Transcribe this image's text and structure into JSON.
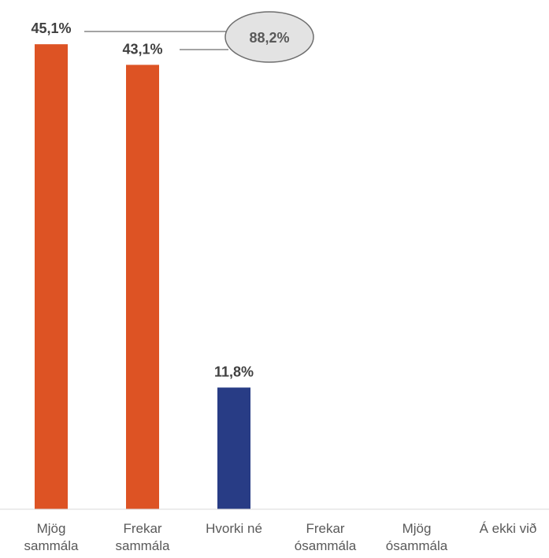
{
  "chart_data": {
    "type": "bar",
    "categories": [
      [
        "Mjög",
        "sammála"
      ],
      [
        "Frekar",
        "sammála"
      ],
      [
        "Hvorki né"
      ],
      [
        "Frekar",
        "ósammála"
      ],
      [
        "Mjög",
        "ósammála"
      ],
      [
        "Á ekki við"
      ]
    ],
    "values": [
      45.1,
      43.1,
      11.8,
      null,
      null,
      null
    ],
    "value_labels": [
      "45,1%",
      "43,1%",
      "11,8%",
      "",
      "",
      ""
    ],
    "colors": [
      "#dd5324",
      "#dd5324",
      "#283c85",
      "#dd5324",
      "#dd5324",
      "#dd5324"
    ],
    "ylim": [
      0,
      50
    ],
    "grid": false,
    "annotation": {
      "label": "88,2%",
      "fill": "#e3e3e3",
      "stroke": "#6d6d6d"
    }
  }
}
